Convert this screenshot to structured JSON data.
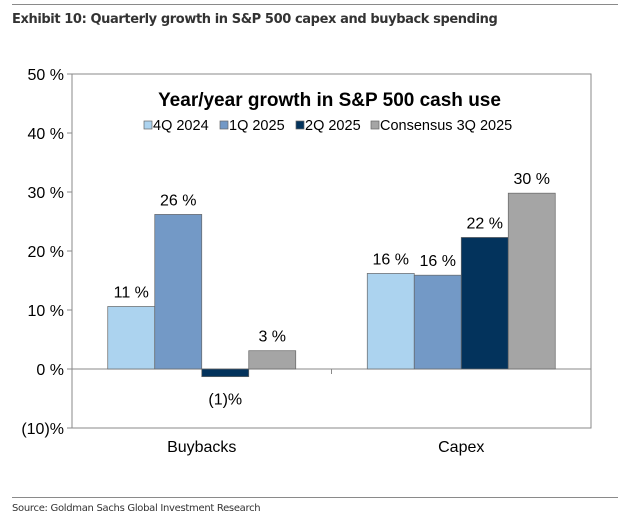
{
  "header": {
    "exhibit_title": "Exhibit 10: Quarterly growth in S&P 500 capex and buyback spending"
  },
  "footer": {
    "source": "Source: Goldman Sachs Global Investment Research"
  },
  "chart_data": {
    "type": "bar",
    "title": "Year/year growth in S&P 500 cash use",
    "categories": [
      "Buybacks",
      "Capex"
    ],
    "series": [
      {
        "name": "4Q 2024",
        "color": "#acd3ef",
        "values": [
          10.6,
          16.2
        ],
        "labels": [
          "11 %",
          "16 %"
        ]
      },
      {
        "name": "1Q 2025",
        "color": "#7399c6",
        "values": [
          26.2,
          15.9
        ],
        "labels": [
          "26 %",
          "16 %"
        ]
      },
      {
        "name": "2Q 2025",
        "color": "#03335c",
        "values": [
          -1.3,
          22.3
        ],
        "labels": [
          "(1)%",
          "22 %"
        ]
      },
      {
        "name": "Consensus 3Q 2025",
        "color": "#a5a5a5",
        "values": [
          3.1,
          29.8
        ],
        "labels": [
          "3 %",
          "30 %"
        ]
      }
    ],
    "ylim": [
      -10,
      50
    ],
    "yticks": [
      50,
      40,
      30,
      20,
      10,
      0,
      -10
    ],
    "ytick_labels": [
      "50 %",
      "40 %",
      "30 %",
      "20 %",
      "10 %",
      "0 %",
      "(10)%"
    ],
    "xlabel": "",
    "ylabel": "",
    "legend": "top",
    "grid": false
  }
}
